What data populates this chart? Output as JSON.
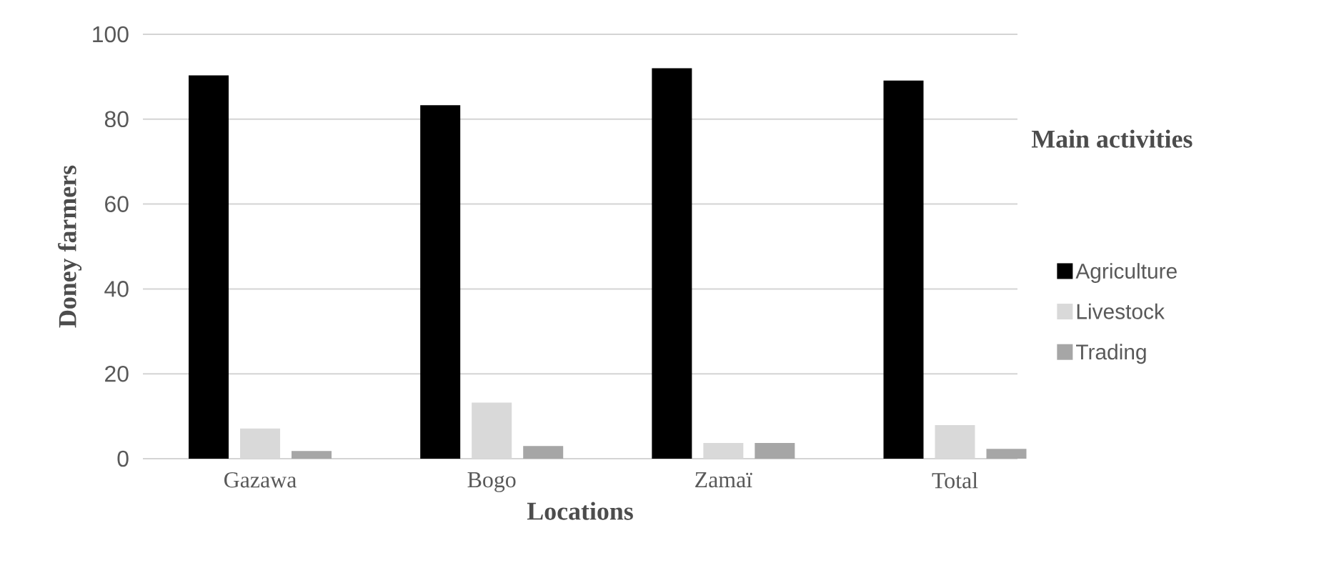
{
  "chart_data": {
    "type": "bar",
    "xlabel": "Locations",
    "ylabel": "Doney farmers",
    "legend_title": "Main activities",
    "categories": [
      "Gazawa",
      "Bogo",
      "Zamaï",
      "Total"
    ],
    "series": [
      {
        "name": "Agriculture",
        "color": "#000000",
        "values": [
          90.3,
          83.3,
          92,
          89.1
        ]
      },
      {
        "name": "Livestock",
        "color": "#d9d9d9",
        "values": [
          7.1,
          13.2,
          3.7,
          7.9
        ]
      },
      {
        "name": "Trading",
        "color": "#a6a6a6",
        "values": [
          1.8,
          3.0,
          3.7,
          2.3
        ]
      }
    ],
    "ylim": [
      0,
      100
    ],
    "yticks": [
      0,
      20,
      40,
      60,
      80,
      100
    ],
    "grid": "y",
    "legend": "right"
  }
}
